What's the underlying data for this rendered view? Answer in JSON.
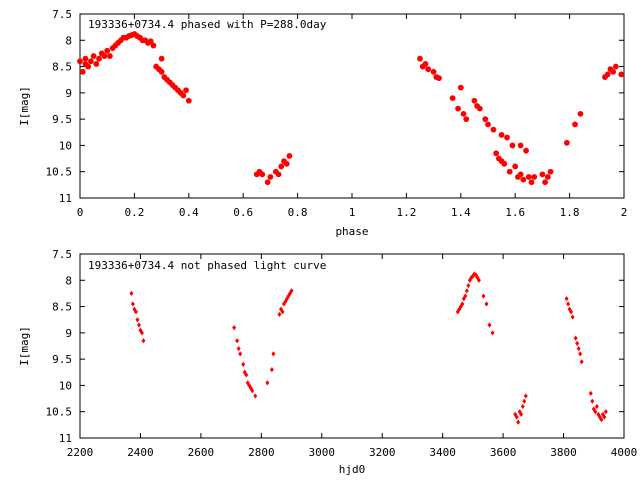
{
  "chart_data": [
    {
      "type": "scatter",
      "title": "193336+0734.4 phased with P=288.0day",
      "xlabel": "phase",
      "ylabel": "I[mag]",
      "xlim": [
        0,
        2
      ],
      "ylim": [
        7.5,
        11
      ],
      "y_inverted": true,
      "grid": false,
      "marker": "filled-circle",
      "color": "#ff0000",
      "xticks": [
        "0",
        "0.2",
        "0.4",
        "0.6",
        "0.8",
        "1",
        "1.2",
        "1.4",
        "1.6",
        "1.8",
        "2"
      ],
      "yticks": [
        "7.5",
        "8",
        "8.5",
        "9",
        "9.5",
        "10",
        "10.5",
        "11"
      ],
      "points": [
        [
          0.0,
          8.4
        ],
        [
          0.01,
          8.6
        ],
        [
          0.02,
          8.45
        ],
        [
          0.02,
          8.35
        ],
        [
          0.03,
          8.5
        ],
        [
          0.04,
          8.4
        ],
        [
          0.05,
          8.3
        ],
        [
          0.06,
          8.45
        ],
        [
          0.07,
          8.35
        ],
        [
          0.08,
          8.25
        ],
        [
          0.09,
          8.3
        ],
        [
          0.1,
          8.2
        ],
        [
          0.11,
          8.3
        ],
        [
          0.12,
          8.15
        ],
        [
          0.13,
          8.1
        ],
        [
          0.14,
          8.05
        ],
        [
          0.15,
          8.0
        ],
        [
          0.16,
          7.95
        ],
        [
          0.17,
          7.95
        ],
        [
          0.18,
          7.92
        ],
        [
          0.19,
          7.9
        ],
        [
          0.2,
          7.88
        ],
        [
          0.21,
          7.92
        ],
        [
          0.22,
          7.95
        ],
        [
          0.23,
          8.0
        ],
        [
          0.24,
          8.0
        ],
        [
          0.25,
          8.05
        ],
        [
          0.26,
          8.02
        ],
        [
          0.27,
          8.1
        ],
        [
          0.28,
          8.5
        ],
        [
          0.29,
          8.55
        ],
        [
          0.3,
          8.6
        ],
        [
          0.3,
          8.35
        ],
        [
          0.31,
          8.7
        ],
        [
          0.32,
          8.75
        ],
        [
          0.33,
          8.8
        ],
        [
          0.34,
          8.85
        ],
        [
          0.35,
          8.9
        ],
        [
          0.36,
          8.95
        ],
        [
          0.37,
          9.0
        ],
        [
          0.38,
          9.05
        ],
        [
          0.39,
          8.95
        ],
        [
          0.4,
          9.15
        ],
        [
          0.65,
          10.55
        ],
        [
          0.66,
          10.5
        ],
        [
          0.67,
          10.55
        ],
        [
          0.69,
          10.7
        ],
        [
          0.7,
          10.6
        ],
        [
          0.72,
          10.5
        ],
        [
          0.73,
          10.55
        ],
        [
          0.74,
          10.4
        ],
        [
          0.75,
          10.3
        ],
        [
          0.76,
          10.35
        ],
        [
          0.77,
          10.2
        ],
        [
          1.25,
          8.35
        ],
        [
          1.26,
          8.5
        ],
        [
          1.27,
          8.45
        ],
        [
          1.28,
          8.55
        ],
        [
          1.3,
          8.6
        ],
        [
          1.31,
          8.7
        ],
        [
          1.32,
          8.72
        ],
        [
          1.37,
          9.1
        ],
        [
          1.39,
          9.3
        ],
        [
          1.4,
          8.9
        ],
        [
          1.41,
          9.4
        ],
        [
          1.42,
          9.5
        ],
        [
          1.45,
          9.15
        ],
        [
          1.46,
          9.25
        ],
        [
          1.47,
          9.3
        ],
        [
          1.49,
          9.5
        ],
        [
          1.5,
          9.6
        ],
        [
          1.52,
          9.7
        ],
        [
          1.53,
          10.15
        ],
        [
          1.54,
          10.25
        ],
        [
          1.55,
          10.3
        ],
        [
          1.55,
          9.8
        ],
        [
          1.56,
          10.35
        ],
        [
          1.57,
          9.85
        ],
        [
          1.58,
          10.5
        ],
        [
          1.59,
          10.0
        ],
        [
          1.6,
          10.4
        ],
        [
          1.61,
          10.6
        ],
        [
          1.62,
          10.55
        ],
        [
          1.62,
          10.0
        ],
        [
          1.63,
          10.65
        ],
        [
          1.64,
          10.1
        ],
        [
          1.65,
          10.6
        ],
        [
          1.66,
          10.7
        ],
        [
          1.67,
          10.6
        ],
        [
          1.7,
          10.55
        ],
        [
          1.71,
          10.7
        ],
        [
          1.72,
          10.6
        ],
        [
          1.73,
          10.5
        ],
        [
          1.79,
          9.95
        ],
        [
          1.82,
          9.6
        ],
        [
          1.84,
          9.4
        ],
        [
          1.93,
          8.7
        ],
        [
          1.94,
          8.65
        ],
        [
          1.95,
          8.55
        ],
        [
          1.96,
          8.6
        ],
        [
          1.97,
          8.5
        ],
        [
          1.99,
          8.65
        ]
      ]
    },
    {
      "type": "scatter",
      "title": "193336+0734.4 not phased light curve",
      "xlabel": "hjd0",
      "ylabel": "I[mag]",
      "xlim": [
        2200,
        4000
      ],
      "ylim": [
        7.5,
        11
      ],
      "y_inverted": true,
      "grid": false,
      "marker": "small-diamond",
      "color": "#ff0000",
      "xticks": [
        "2200",
        "2400",
        "2600",
        "2800",
        "3000",
        "3200",
        "3400",
        "3600",
        "3800",
        "4000"
      ],
      "yticks": [
        "7.5",
        "8",
        "8.5",
        "9",
        "9.5",
        "10",
        "10.5",
        "11"
      ],
      "points": [
        [
          2370,
          8.25
        ],
        [
          2375,
          8.45
        ],
        [
          2380,
          8.55
        ],
        [
          2385,
          8.6
        ],
        [
          2390,
          8.75
        ],
        [
          2395,
          8.85
        ],
        [
          2400,
          8.95
        ],
        [
          2405,
          9.0
        ],
        [
          2410,
          9.15
        ],
        [
          2710,
          8.9
        ],
        [
          2720,
          9.15
        ],
        [
          2725,
          9.3
        ],
        [
          2730,
          9.4
        ],
        [
          2740,
          9.6
        ],
        [
          2745,
          9.75
        ],
        [
          2750,
          9.8
        ],
        [
          2755,
          9.95
        ],
        [
          2760,
          10.0
        ],
        [
          2765,
          10.05
        ],
        [
          2770,
          10.1
        ],
        [
          2780,
          10.2
        ],
        [
          2820,
          9.95
        ],
        [
          2835,
          9.7
        ],
        [
          2840,
          9.4
        ],
        [
          2860,
          8.65
        ],
        [
          2865,
          8.55
        ],
        [
          2870,
          8.6
        ],
        [
          2875,
          8.45
        ],
        [
          2880,
          8.4
        ],
        [
          2885,
          8.35
        ],
        [
          2890,
          8.3
        ],
        [
          2895,
          8.25
        ],
        [
          2900,
          8.2
        ],
        [
          3450,
          8.6
        ],
        [
          3455,
          8.55
        ],
        [
          3460,
          8.5
        ],
        [
          3465,
          8.45
        ],
        [
          3470,
          8.35
        ],
        [
          3475,
          8.3
        ],
        [
          3480,
          8.2
        ],
        [
          3485,
          8.1
        ],
        [
          3490,
          8.0
        ],
        [
          3495,
          7.95
        ],
        [
          3500,
          7.92
        ],
        [
          3505,
          7.88
        ],
        [
          3510,
          7.9
        ],
        [
          3515,
          7.95
        ],
        [
          3520,
          8.0
        ],
        [
          3535,
          8.3
        ],
        [
          3545,
          8.45
        ],
        [
          3555,
          8.85
        ],
        [
          3565,
          9.0
        ],
        [
          3640,
          10.55
        ],
        [
          3645,
          10.6
        ],
        [
          3650,
          10.7
        ],
        [
          3655,
          10.5
        ],
        [
          3660,
          10.55
        ],
        [
          3665,
          10.4
        ],
        [
          3670,
          10.3
        ],
        [
          3675,
          10.2
        ],
        [
          3810,
          8.35
        ],
        [
          3815,
          8.45
        ],
        [
          3820,
          8.55
        ],
        [
          3825,
          8.6
        ],
        [
          3830,
          8.7
        ],
        [
          3840,
          9.1
        ],
        [
          3845,
          9.2
        ],
        [
          3850,
          9.3
        ],
        [
          3855,
          9.4
        ],
        [
          3860,
          9.55
        ],
        [
          3890,
          10.15
        ],
        [
          3895,
          10.3
        ],
        [
          3900,
          10.45
        ],
        [
          3905,
          10.5
        ],
        [
          3910,
          10.4
        ],
        [
          3915,
          10.55
        ],
        [
          3920,
          10.6
        ],
        [
          3925,
          10.65
        ],
        [
          3930,
          10.55
        ],
        [
          3935,
          10.6
        ],
        [
          3940,
          10.5
        ]
      ]
    }
  ]
}
